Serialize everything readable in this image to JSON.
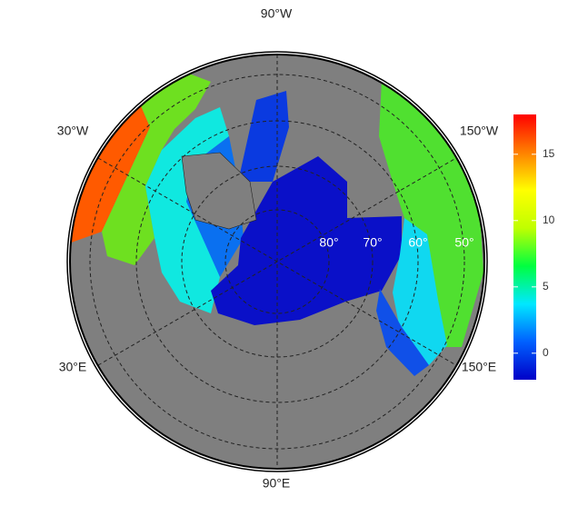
{
  "map": {
    "lon_labels": [
      "90°W",
      "30°W",
      "150°W",
      "30°E",
      "150°E",
      "90°E"
    ],
    "lat_labels": [
      "80°",
      "70°",
      "60°",
      "50°"
    ],
    "colorbar": {
      "lim": [
        -2,
        18
      ],
      "ticks": [
        0,
        5,
        10,
        15
      ],
      "colors": [
        "#0000c8",
        "#0060ff",
        "#00e8ff",
        "#00ff40",
        "#c0ff00",
        "#ffff00",
        "#ff8000",
        "#ff0000"
      ]
    }
  }
}
